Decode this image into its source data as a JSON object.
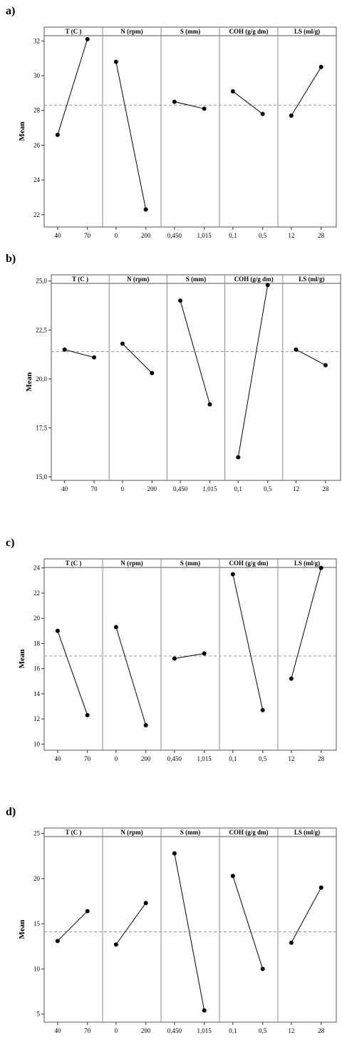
{
  "chart_data": [
    {
      "type": "line",
      "panel_label": "a)",
      "ylabel": "Mean",
      "ylim": [
        21.5,
        33
      ],
      "yticks": [
        22,
        24,
        26,
        28,
        30,
        32
      ],
      "ytick_labels": [
        "22",
        "24",
        "26",
        "28",
        "30",
        "32"
      ],
      "overall_mean": 28.3,
      "factors": [
        {
          "name": "T (C )",
          "levels": [
            "40",
            "70"
          ],
          "values": [
            26.6,
            32.1
          ]
        },
        {
          "name": "N (rpm)",
          "levels": [
            "0",
            "200"
          ],
          "values": [
            30.8,
            22.3
          ]
        },
        {
          "name": "S (mm)",
          "levels": [
            "0,450",
            "1,015"
          ],
          "values": [
            28.5,
            28.1
          ]
        },
        {
          "name": "COH (g/g dm)",
          "levels": [
            "0,1",
            "0,5"
          ],
          "values": [
            29.1,
            27.8
          ]
        },
        {
          "name": "LS (ml/g)",
          "levels": [
            "12",
            "28"
          ],
          "values": [
            27.7,
            30.5
          ]
        }
      ]
    },
    {
      "type": "line",
      "panel_label": "b)",
      "ylabel": "Mean",
      "ylim": [
        15,
        25.5
      ],
      "yticks": [
        15,
        17.5,
        20,
        22.5,
        25
      ],
      "ytick_labels": [
        "15,0",
        "17,5",
        "20,0",
        "22,5",
        "25,0"
      ],
      "overall_mean": 21.4,
      "factors": [
        {
          "name": "T (C )",
          "levels": [
            "40",
            "70"
          ],
          "values": [
            21.5,
            21.1
          ]
        },
        {
          "name": "N (rpm)",
          "levels": [
            "0",
            "200"
          ],
          "values": [
            21.8,
            20.3
          ]
        },
        {
          "name": "S (mm)",
          "levels": [
            "0,450",
            "1,015"
          ],
          "values": [
            24.0,
            18.7
          ]
        },
        {
          "name": "COH (g/g dm)",
          "levels": [
            "0,1",
            "0,5"
          ],
          "values": [
            16.0,
            24.8
          ]
        },
        {
          "name": "LS (ml/g)",
          "levels": [
            "12",
            "28"
          ],
          "values": [
            21.5,
            20.7
          ]
        }
      ]
    },
    {
      "type": "line",
      "panel_label": "c)",
      "ylabel": "Mean",
      "ylim": [
        9.8,
        25
      ],
      "yticks": [
        10,
        12,
        14,
        16,
        18,
        20,
        22,
        24
      ],
      "ytick_labels": [
        "10",
        "12",
        "14",
        "16",
        "18",
        "20",
        "22",
        "24"
      ],
      "overall_mean": 17.0,
      "factors": [
        {
          "name": "T (C )",
          "levels": [
            "40",
            "70"
          ],
          "values": [
            19.0,
            12.3
          ]
        },
        {
          "name": "N (rpm)",
          "levels": [
            "0",
            "200"
          ],
          "values": [
            19.3,
            11.5
          ]
        },
        {
          "name": "S (mm)",
          "levels": [
            "0,450",
            "1,015"
          ],
          "values": [
            16.8,
            17.2
          ]
        },
        {
          "name": "COH (g/g dm)",
          "levels": [
            "0,1",
            "0,5"
          ],
          "values": [
            23.5,
            12.7
          ]
        },
        {
          "name": "LS (ml/g)",
          "levels": [
            "12",
            "28"
          ],
          "values": [
            15.2,
            24.0
          ]
        }
      ]
    },
    {
      "type": "line",
      "panel_label": "d)",
      "ylabel": "Mean",
      "ylim": [
        4.5,
        26
      ],
      "yticks": [
        5,
        10,
        15,
        20,
        25
      ],
      "ytick_labels": [
        "5",
        "10",
        "15",
        "20",
        "25"
      ],
      "overall_mean": 14.1,
      "factors": [
        {
          "name": "T (C )",
          "levels": [
            "40",
            "70"
          ],
          "values": [
            13.1,
            16.4
          ]
        },
        {
          "name": "N (rpm)",
          "levels": [
            "0",
            "200"
          ],
          "values": [
            12.7,
            17.3
          ]
        },
        {
          "name": "S (mm)",
          "levels": [
            "0,450",
            "1,015"
          ],
          "values": [
            22.8,
            5.4
          ]
        },
        {
          "name": "COH (g/g dm)",
          "levels": [
            "0,1",
            "0,5"
          ],
          "values": [
            20.3,
            10.0
          ]
        },
        {
          "name": "LS (ml/g)",
          "levels": [
            "12",
            "28"
          ],
          "values": [
            12.9,
            19.0
          ]
        }
      ]
    }
  ]
}
